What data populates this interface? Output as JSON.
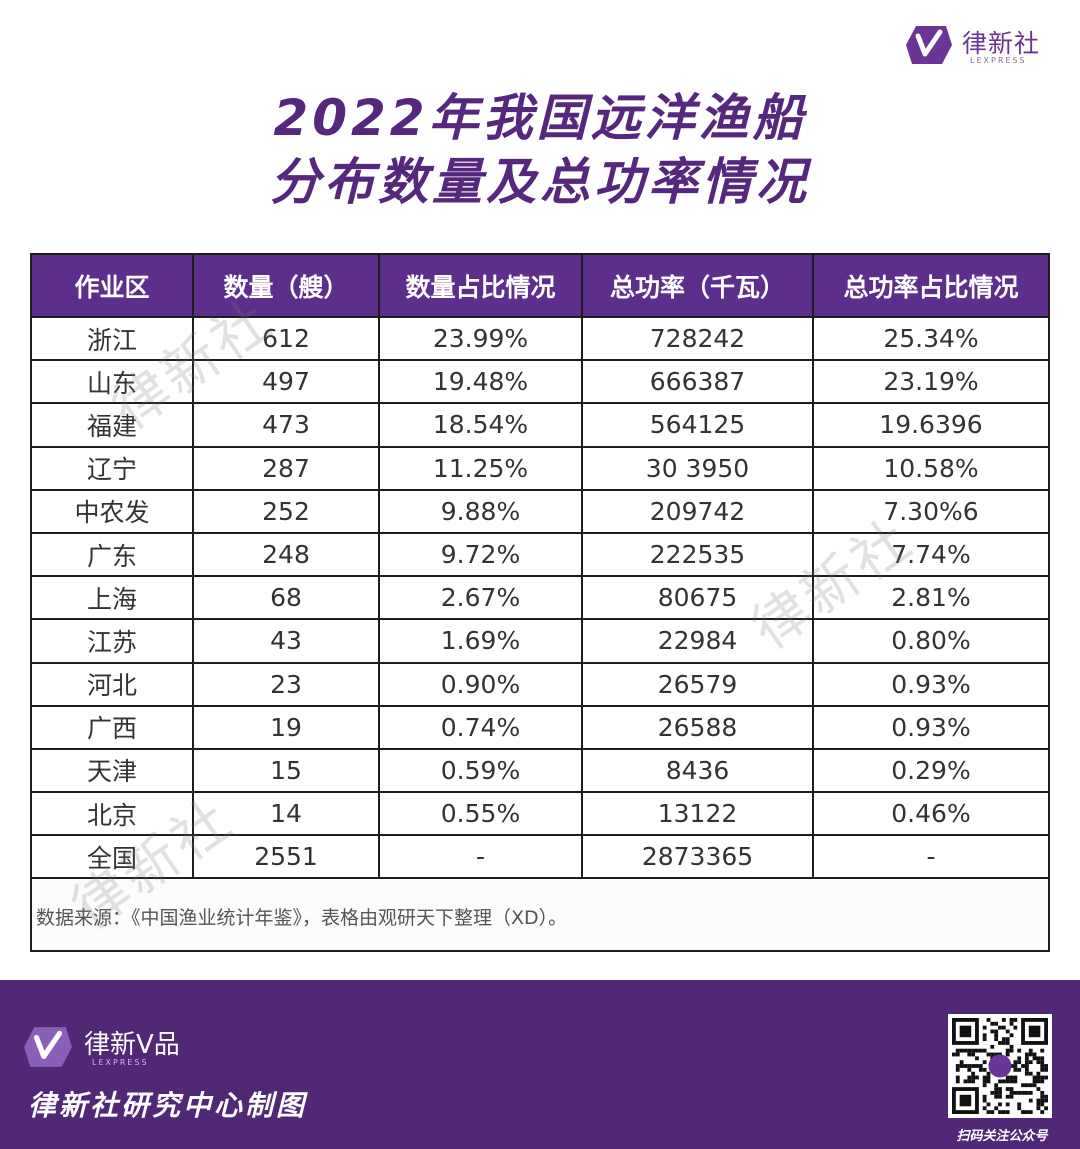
{
  "brand": {
    "name": "律新社",
    "sub": "LEXPRESS"
  },
  "title": {
    "line1": "2022年我国远洋渔船",
    "line2": "分布数量及总功率情况"
  },
  "chart_data": {
    "type": "table",
    "columns": [
      "作业区",
      "数量（艘）",
      "数量占比情况",
      "总功率（千瓦）",
      "总功率占比情况"
    ],
    "rows": [
      [
        "浙江",
        "612",
        "23.99%",
        "728242",
        "25.34%"
      ],
      [
        "山东",
        "497",
        "19.48%",
        "666387",
        "23.19%"
      ],
      [
        "福建",
        "473",
        "18.54%",
        "564125",
        "19.6396"
      ],
      [
        "辽宁",
        "287",
        "11.25%",
        "30 3950",
        "10.58%"
      ],
      [
        "中农发",
        "252",
        "9.88%",
        "209742",
        "7.30%6"
      ],
      [
        "广东",
        "248",
        "9.72%",
        "222535",
        "7.74%"
      ],
      [
        "上海",
        "68",
        "2.67%",
        "80675",
        "2.81%"
      ],
      [
        "江苏",
        "43",
        "1.69%",
        "22984",
        "0.80%"
      ],
      [
        "河北",
        "23",
        "0.90%",
        "26579",
        "0.93%"
      ],
      [
        "广西",
        "19",
        "0.74%",
        "26588",
        "0.93%"
      ],
      [
        "天津",
        "15",
        "0.59%",
        "8436",
        "0.29%"
      ],
      [
        "北京",
        "14",
        "0.55%",
        "13122",
        "0.46%"
      ],
      [
        "全国",
        "2551",
        "-",
        "2873365",
        "-"
      ]
    ]
  },
  "note": "数据来源：《中国渔业统计年鉴》，表格由观研天下整理（XD）。",
  "watermark": "律新社",
  "footer": {
    "brand": "律新V品",
    "sub": "LEXPRESS",
    "credit": "律新社研究中心制图",
    "qr_caption": "扫码关注公众号"
  },
  "colors": {
    "accent": "#5e2e8c",
    "footer_bg": "#512876",
    "title": "#55287e"
  }
}
